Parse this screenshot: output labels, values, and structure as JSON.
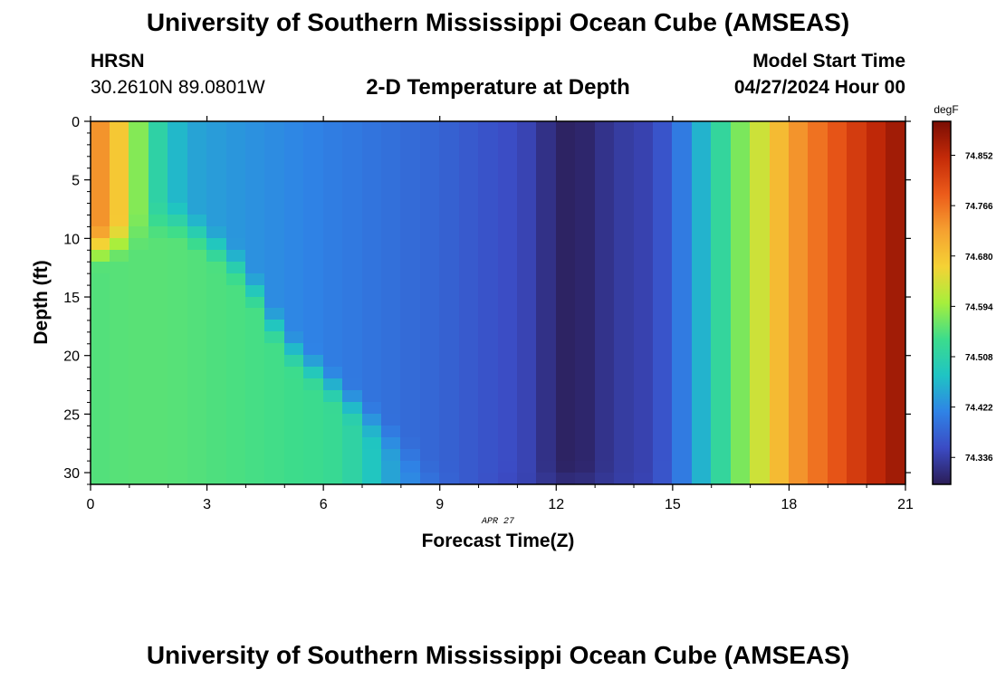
{
  "header": {
    "title": "University of Southern Mississippi Ocean Cube (AMSEAS)",
    "station_name": "HRSN",
    "station_coords": "30.2610N  89.0801W",
    "plot_subtitle": "2-D Temperature at Depth",
    "model_start_label": "Model Start Time",
    "model_start_value": "04/27/2024 Hour 00"
  },
  "footer": {
    "title": "University of Southern Mississippi Ocean Cube (AMSEAS)"
  },
  "colors": {
    "colormap": [
      "#2b1d56",
      "#3b4bc4",
      "#2f83e6",
      "#1fc4c4",
      "#3cdc8c",
      "#a6ef3c",
      "#f5d235",
      "#f5a030",
      "#ec5b1a",
      "#c42a08",
      "#7a0d04"
    ]
  },
  "chart_data": {
    "type": "heatmap",
    "title": "2-D Temperature at Depth",
    "xlabel": "Forecast Time(Z)",
    "ylabel": "Depth (ft)",
    "date_label": "APR 27",
    "x_ticks": [
      0,
      3,
      6,
      9,
      12,
      15,
      18,
      21
    ],
    "y_ticks": [
      0,
      5,
      10,
      15,
      20,
      25,
      30
    ],
    "xlim": [
      0,
      21
    ],
    "ylim": [
      0,
      31
    ],
    "x_step_hours": 0.5,
    "y_step_ft": 1,
    "colorbar": {
      "unit": "degF",
      "min": 74.29,
      "max": 74.91,
      "ticks": [
        74.336,
        74.422,
        74.508,
        74.594,
        74.68,
        74.766,
        74.852
      ]
    },
    "surface_profile": {
      "x": [
        0,
        0.5,
        1,
        1.5,
        2,
        2.5,
        3,
        4,
        5,
        6,
        7,
        8,
        9,
        10,
        11,
        11.5,
        12,
        12.5,
        13,
        13.5,
        14,
        14.5,
        15,
        15.5,
        16,
        16.5,
        17,
        17.5,
        18,
        19,
        20,
        21
      ],
      "temp": [
        74.74,
        74.73,
        74.62,
        74.54,
        74.48,
        74.45,
        74.44,
        74.43,
        74.42,
        74.41,
        74.4,
        74.39,
        74.38,
        74.365,
        74.35,
        74.335,
        74.3,
        74.295,
        74.31,
        74.33,
        74.335,
        74.345,
        74.38,
        74.43,
        74.49,
        74.55,
        74.6,
        74.66,
        74.72,
        74.78,
        74.84,
        74.89
      ]
    },
    "bottom_profile": {
      "x": [
        0,
        1,
        2,
        3,
        4,
        5,
        6,
        6.5,
        7,
        7.5,
        8,
        8.5,
        9,
        9.5,
        10,
        11,
        12,
        13,
        14,
        14.5,
        15,
        15.5,
        16,
        16.5,
        17,
        17.5,
        18,
        19,
        20,
        21
      ],
      "temp": [
        74.55,
        74.555,
        74.555,
        74.55,
        74.545,
        74.54,
        74.535,
        74.525,
        74.5,
        74.46,
        74.43,
        74.41,
        74.395,
        74.375,
        74.36,
        74.34,
        74.335,
        74.335,
        74.34,
        74.35,
        74.38,
        74.43,
        74.49,
        74.55,
        74.6,
        74.66,
        74.72,
        74.78,
        74.84,
        74.89
      ]
    },
    "upper_layer_depth": [
      {
        "x": 0,
        "depth": 11
      },
      {
        "x": 1,
        "depth": 10
      },
      {
        "x": 2,
        "depth": 8
      },
      {
        "x": 3,
        "depth": 10
      },
      {
        "x": 4,
        "depth": 13
      },
      {
        "x": 5,
        "depth": 19
      },
      {
        "x": 6,
        "depth": 22
      },
      {
        "x": 7,
        "depth": 25
      },
      {
        "x": 8,
        "depth": 28
      },
      {
        "x": 9,
        "depth": 31
      },
      {
        "x": 21,
        "depth": 31
      }
    ]
  }
}
